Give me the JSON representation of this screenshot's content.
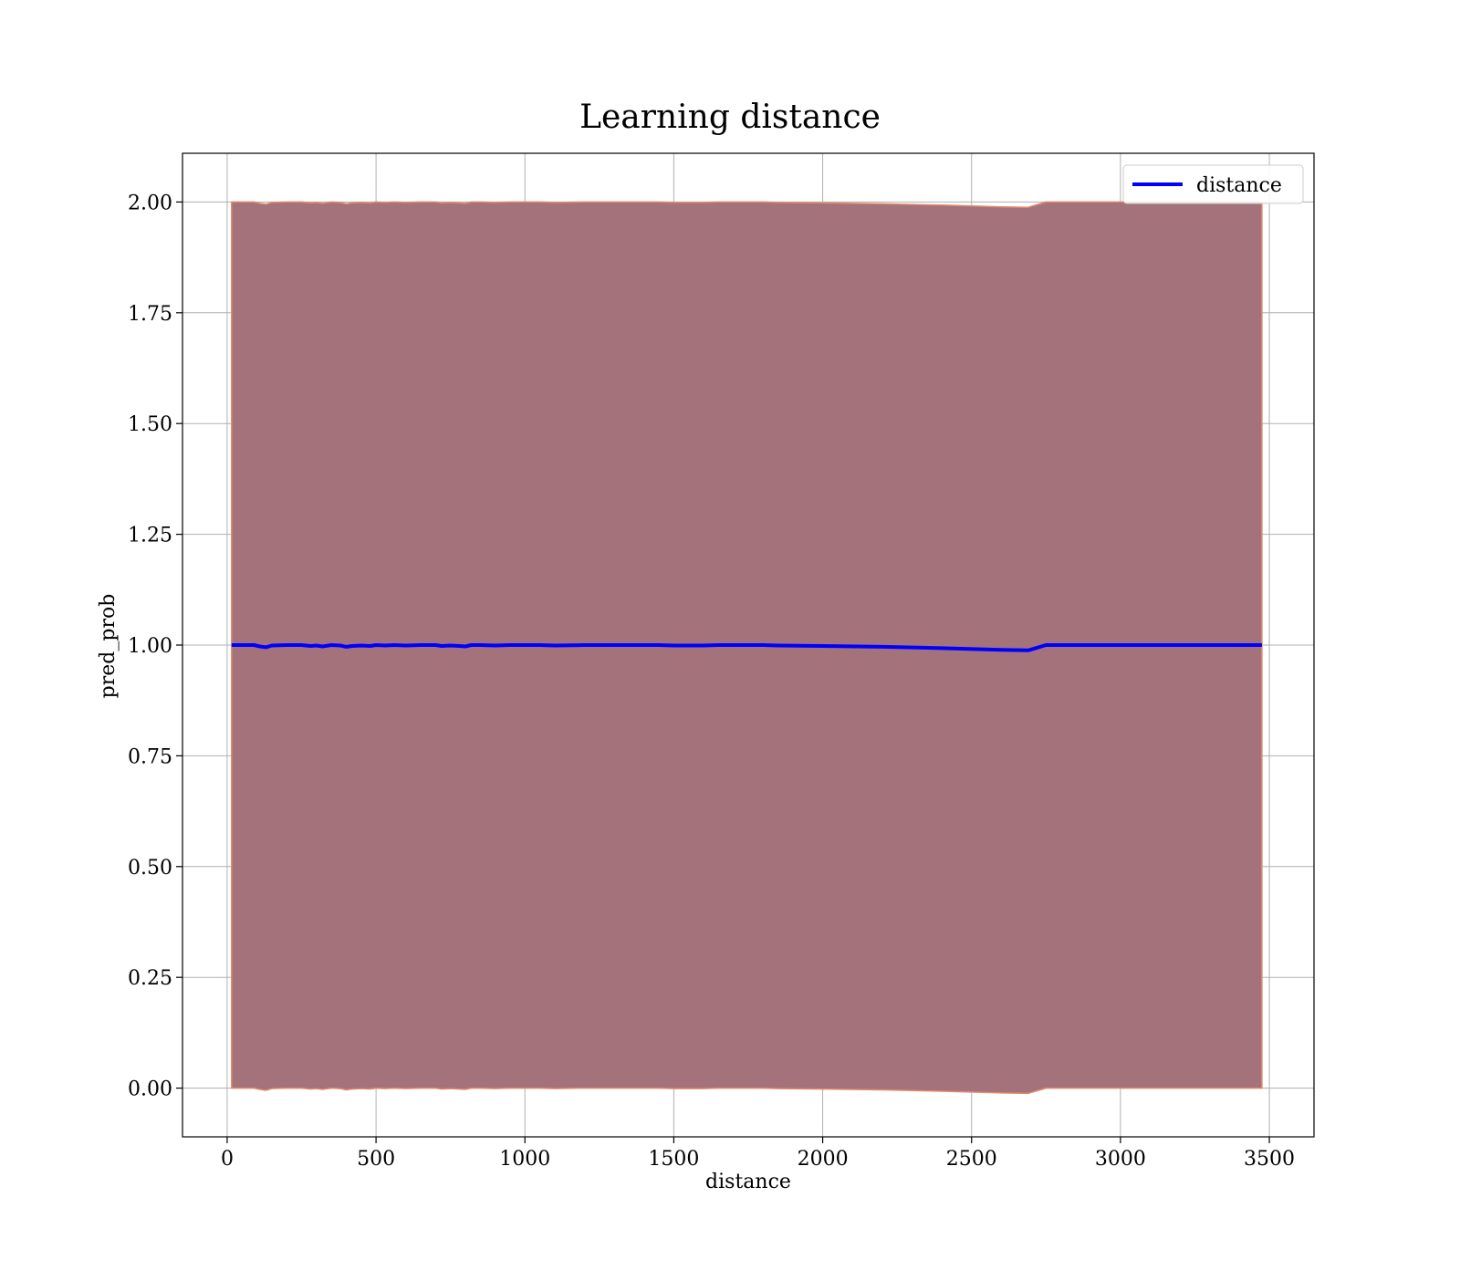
{
  "chart_data": {
    "type": "line",
    "title": "Learning distance",
    "xlabel": "distance",
    "ylabel": "pred_prob",
    "xlim": [
      -150,
      3650
    ],
    "ylim": [
      -0.11,
      2.11
    ],
    "xticks": [
      0,
      500,
      1000,
      1500,
      2000,
      2500,
      3000,
      3500
    ],
    "yticks": [
      0.0,
      0.25,
      0.5,
      0.75,
      1.0,
      1.25,
      1.5,
      1.75,
      2.0
    ],
    "xtick_labels": [
      "0",
      "500",
      "1000",
      "1500",
      "2000",
      "2500",
      "3000",
      "3500"
    ],
    "ytick_labels": [
      "0.00",
      "0.25",
      "0.50",
      "0.75",
      "1.00",
      "1.25",
      "1.50",
      "1.75",
      "2.00"
    ],
    "grid": true,
    "legend_position": "top-right",
    "series": [
      {
        "name": "distance",
        "color": "#0000ff",
        "x": [
          15,
          90,
          110,
          130,
          150,
          200,
          250,
          280,
          300,
          320,
          350,
          380,
          400,
          420,
          450,
          480,
          500,
          530,
          560,
          600,
          650,
          700,
          720,
          750,
          780,
          800,
          820,
          850,
          900,
          950,
          1000,
          1050,
          1100,
          1200,
          1300,
          1400,
          1450,
          1500,
          1600,
          1650,
          1700,
          1800,
          1850,
          2000,
          2200,
          2400,
          2600,
          2690,
          2750,
          3000,
          3200,
          3475
        ],
        "y": [
          1.0,
          1.0,
          0.997,
          0.995,
          0.999,
          1.0,
          1.0,
          0.998,
          0.999,
          0.997,
          1.0,
          0.999,
          0.996,
          0.998,
          0.999,
          0.998,
          1.0,
          0.999,
          1.0,
          0.999,
          1.0,
          1.0,
          0.998,
          0.999,
          0.998,
          0.997,
          1.0,
          1.0,
          0.999,
          1.0,
          1.0,
          1.0,
          0.999,
          1.0,
          1.0,
          1.0,
          1.0,
          0.999,
          0.999,
          1.0,
          1.0,
          1.0,
          0.999,
          0.998,
          0.996,
          0.993,
          0.989,
          0.988,
          1.0,
          1.0,
          1.0,
          1.0
        ]
      }
    ],
    "band": {
      "fill_color": "#a3727b",
      "edge_color": "#e08a6a",
      "upper_offset": 1.0,
      "lower_offset": 1.0
    }
  }
}
